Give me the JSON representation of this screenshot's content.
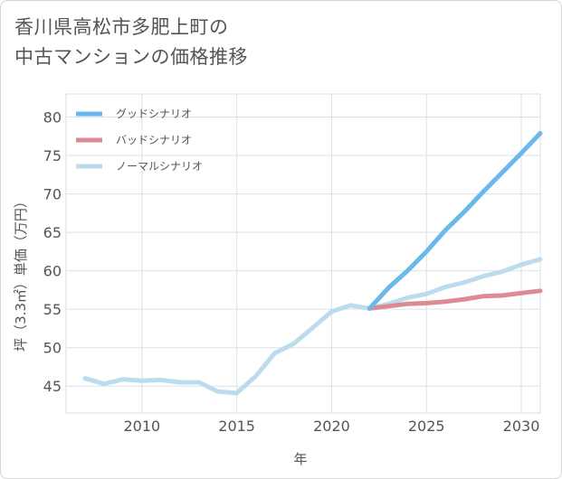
{
  "chart_data": {
    "type": "line",
    "title_lines": [
      "香川県高松市多肥上町の",
      "中古マンションの価格推移"
    ],
    "xlabel": "年",
    "ylabel": "坪（3.3㎡）単価（万円）",
    "xlim": [
      2006,
      2031
    ],
    "ylim": [
      41.5,
      83
    ],
    "x_ticks": [
      2010,
      2015,
      2020,
      2025,
      2030
    ],
    "y_ticks": [
      45,
      50,
      55,
      60,
      65,
      70,
      75,
      80
    ],
    "grid": true,
    "legend_position": "top-left",
    "series": [
      {
        "name": "グッドシナリオ",
        "color": "#6bb8ea",
        "x": [
          2022,
          2023,
          2024,
          2025,
          2026,
          2027,
          2028,
          2029,
          2030,
          2031
        ],
        "values": [
          55.1,
          57.8,
          60.0,
          62.5,
          65.3,
          67.7,
          70.3,
          72.8,
          75.3,
          77.9
        ]
      },
      {
        "name": "バッドシナリオ",
        "color": "#dc8a93",
        "x": [
          2022,
          2023,
          2024,
          2025,
          2026,
          2027,
          2028,
          2029,
          2030,
          2031
        ],
        "values": [
          55.1,
          55.4,
          55.7,
          55.8,
          56.0,
          56.3,
          56.7,
          56.8,
          57.1,
          57.4
        ]
      },
      {
        "name": "ノーマルシナリオ",
        "color": "#bcdcee",
        "x": [
          2007,
          2008,
          2009,
          2010,
          2011,
          2012,
          2013,
          2014,
          2015,
          2016,
          2017,
          2018,
          2019,
          2020,
          2021,
          2022,
          2023,
          2024,
          2025,
          2026,
          2027,
          2028,
          2029,
          2030,
          2031
        ],
        "values": [
          46.0,
          45.3,
          45.9,
          45.7,
          45.8,
          45.5,
          45.5,
          44.3,
          44.1,
          46.3,
          49.3,
          50.5,
          52.6,
          54.7,
          55.5,
          55.1,
          55.7,
          56.5,
          57.0,
          57.9,
          58.5,
          59.3,
          59.9,
          60.8,
          61.5
        ]
      }
    ]
  }
}
